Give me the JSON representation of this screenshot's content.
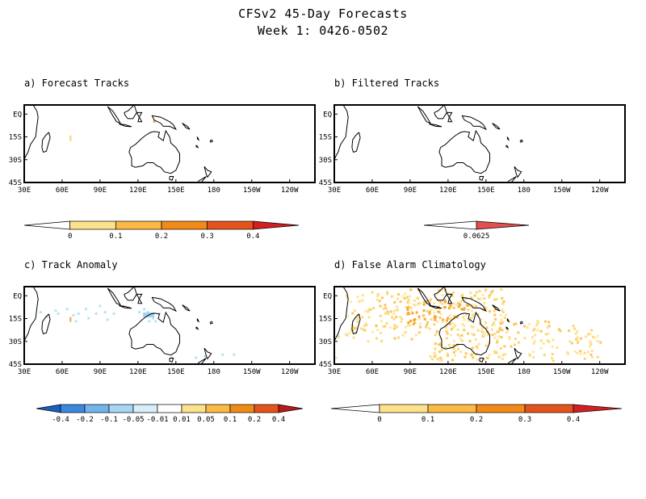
{
  "title": "CFSv2 45-Day Forecasts",
  "subtitle": "Week 1: 0426-0502",
  "axes": {
    "lat_ticks": [
      "EQ",
      "15S",
      "30S",
      "45S"
    ],
    "lon_ticks": [
      "30E",
      "60E",
      "90E",
      "120E",
      "150E",
      "180",
      "150W",
      "120W"
    ]
  },
  "panels": [
    {
      "id": "a",
      "title": "a) Forecast Tracks"
    },
    {
      "id": "b",
      "title": "b) Filtered Tracks"
    },
    {
      "id": "c",
      "title": "c) Track Anomaly"
    },
    {
      "id": "d",
      "title": "d) False Alarm Climatology"
    }
  ],
  "colorbars": {
    "a": {
      "labels": [
        "0",
        "0.1",
        "0.2",
        "0.3",
        "0.4"
      ],
      "colors": [
        "#ffffff",
        "#fde28b",
        "#fbb945",
        "#f28a18",
        "#e5531c",
        "#d21f22"
      ]
    },
    "b": {
      "labels": [
        "0.0625"
      ],
      "colors": [
        "#ffffff",
        "#e05050"
      ]
    },
    "c": {
      "labels": [
        "-0.4",
        "-0.2",
        "-0.1",
        "-0.05",
        "-0.01",
        "0.01",
        "0.05",
        "0.1",
        "0.2",
        "0.4"
      ],
      "colors": [
        "#1c5fbf",
        "#3b88dd",
        "#72b4ec",
        "#a7d6f4",
        "#d8eefa",
        "#ffffff",
        "#fde28b",
        "#fbb945",
        "#f28a18",
        "#e5531c",
        "#b81a1a"
      ]
    },
    "d": {
      "labels": [
        "0",
        "0.1",
        "0.2",
        "0.3",
        "0.4"
      ],
      "colors": [
        "#ffffff",
        "#fde28b",
        "#fbb945",
        "#f28a18",
        "#e5531c",
        "#d21f22"
      ]
    }
  }
}
